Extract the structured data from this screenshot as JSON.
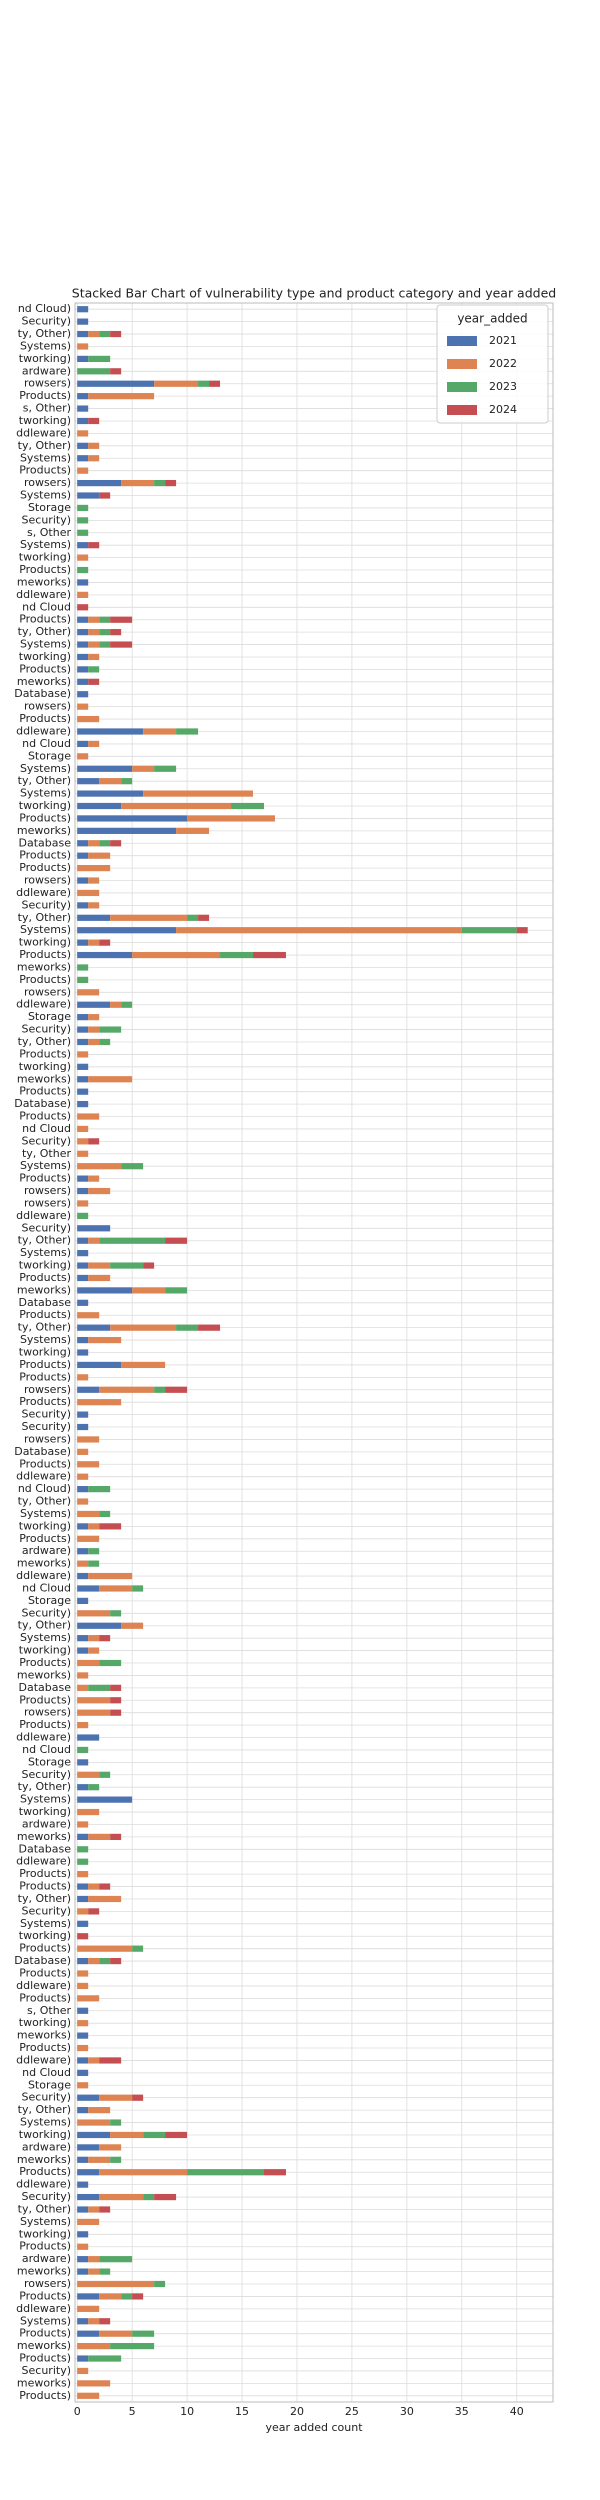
{
  "chart_data": {
    "type": "stacked_barh",
    "title": "Stacked Bar Chart of  vulnerability type and product category and year added",
    "x_label": "year added count",
    "legend_title": "year_added",
    "legend_position": "upper right",
    "grid": true,
    "xlim": [
      -0.2,
      43.3
    ],
    "xticks": [
      0,
      5,
      10,
      15,
      20,
      25,
      30,
      35,
      40
    ],
    "categories": [
      "nd Cloud)",
      "Security)",
      "ty, Other)",
      "Systems)",
      "tworking)",
      "ardware)",
      "rowsers)",
      "Products)",
      "s, Other)",
      "tworking)",
      "ddleware)",
      "ty, Other)",
      "Systems)",
      "Products)",
      "rowsers)",
      "Systems)",
      "Storage",
      "Security)",
      "s, Other",
      "Systems)",
      "tworking)",
      "Products)",
      "meworks)",
      "ddleware)",
      "nd Cloud",
      "Products)",
      "ty, Other)",
      "Systems)",
      "tworking)",
      "Products)",
      "meworks)",
      "Database)",
      "rowsers)",
      "Products)",
      "ddleware)",
      "nd Cloud",
      "Storage",
      "Systems)",
      "ty, Other)",
      "Systems)",
      "tworking)",
      "Products)",
      "meworks)",
      "Database",
      "Products)",
      "Products)",
      "rowsers)",
      "ddleware)",
      "Security)",
      "ty, Other)",
      "Systems)",
      "tworking)",
      "Products)",
      "meworks)",
      "Products)",
      "rowsers)",
      "ddleware)",
      "Storage",
      "Security)",
      "ty, Other)",
      "Products)",
      "tworking)",
      "meworks)",
      "Products)",
      "Database)",
      "Products)",
      "nd Cloud",
      "Security)",
      "ty, Other",
      "Systems)",
      "Products)",
      "rowsers)",
      "rowsers)",
      "ddleware)",
      "Security)",
      "ty, Other)",
      "Systems)",
      "tworking)",
      "Products)",
      "meworks)",
      "Database",
      "Products)",
      "ty, Other)",
      "Systems)",
      "tworking)",
      "Products)",
      "Products)",
      "rowsers)",
      "Products)",
      "Security)",
      "Security)",
      "rowsers)",
      "Database)",
      "Products)",
      "ddleware)",
      "nd Cloud)",
      "ty, Other)",
      "Systems)",
      "tworking)",
      "Products)",
      "ardware)",
      "meworks)",
      "ddleware)",
      "nd Cloud",
      "Storage",
      "Security)",
      "ty, Other)",
      "Systems)",
      "tworking)",
      "Products)",
      "meworks)",
      "Database",
      "Products)",
      "rowsers)",
      "Products)",
      "ddleware)",
      "nd Cloud",
      "Storage",
      "Security)",
      "ty, Other)",
      "Systems)",
      "tworking)",
      "ardware)",
      "meworks)",
      "Database",
      "ddleware)",
      "Products)",
      "Products)",
      "ty, Other)",
      "Security)",
      "Systems)",
      "tworking)",
      "Products)",
      "Database)",
      "Products)",
      "ddleware)",
      "Products)",
      "s, Other",
      "tworking)",
      "meworks)",
      "Products)",
      "ddleware)",
      "nd Cloud",
      "Storage",
      "Security)",
      "ty, Other)",
      "Systems)",
      "tworking)",
      "ardware)",
      "meworks)",
      "Products)",
      "ddleware)",
      "Security)",
      "ty, Other)",
      "Systems)",
      "tworking)",
      "Products)",
      "ardware)",
      "meworks)",
      "rowsers)",
      "Products)",
      "ddleware)",
      "Systems)",
      "Products)",
      "meworks)",
      "Products)",
      "Security)",
      "meworks)",
      "Products)"
    ],
    "series": [
      {
        "name": "2021",
        "color": "#4c72b0",
        "values": [
          1,
          1,
          1,
          0,
          1,
          0,
          7,
          1,
          1,
          1,
          0,
          1,
          1,
          0,
          4,
          2,
          0,
          0,
          0,
          1,
          0,
          0,
          1,
          0,
          0,
          1,
          1,
          1,
          1,
          1,
          1,
          1,
          0,
          0,
          6,
          1,
          0,
          5,
          2,
          6,
          4,
          10,
          9,
          1,
          1,
          0,
          1,
          0,
          1,
          3,
          9,
          1,
          5,
          0,
          0,
          0,
          3,
          1,
          1,
          1,
          0,
          1,
          1,
          1,
          1,
          0,
          0,
          0,
          0,
          0,
          1,
          1,
          0,
          0,
          3,
          1,
          1,
          1,
          1,
          5,
          1,
          0,
          3,
          1,
          1,
          4,
          0,
          2,
          0,
          1,
          1,
          0,
          0,
          0,
          0,
          1,
          0,
          0,
          1,
          0,
          1,
          0,
          1,
          2,
          1,
          0,
          4,
          1,
          1,
          0,
          0,
          0,
          0,
          0,
          0,
          2,
          0,
          1,
          0,
          1,
          5,
          0,
          0,
          1,
          0,
          0,
          0,
          1,
          1,
          0,
          1,
          0,
          0,
          1,
          0,
          0,
          0,
          1,
          0,
          1,
          0,
          1,
          1,
          0,
          2,
          1,
          0,
          3,
          2,
          1,
          2,
          1,
          2,
          1,
          0,
          1,
          0,
          1,
          1,
          0,
          2,
          0,
          1,
          2,
          0,
          1,
          0,
          0,
          0
        ]
      },
      {
        "name": "2022",
        "color": "#dd8452",
        "values": [
          0,
          0,
          1,
          1,
          0,
          0,
          4,
          6,
          0,
          0,
          1,
          1,
          1,
          1,
          3,
          0,
          0,
          0,
          0,
          0,
          1,
          0,
          0,
          1,
          0,
          1,
          1,
          1,
          1,
          0,
          0,
          0,
          1,
          2,
          3,
          1,
          1,
          2,
          2,
          10,
          10,
          8,
          3,
          1,
          2,
          3,
          1,
          2,
          1,
          7,
          26,
          1,
          8,
          0,
          0,
          2,
          1,
          1,
          1,
          1,
          1,
          0,
          4,
          0,
          0,
          2,
          1,
          1,
          1,
          4,
          1,
          2,
          1,
          0,
          0,
          1,
          0,
          2,
          2,
          3,
          0,
          2,
          6,
          3,
          0,
          4,
          1,
          5,
          4,
          0,
          0,
          2,
          1,
          2,
          1,
          0,
          1,
          2,
          1,
          2,
          0,
          1,
          4,
          3,
          0,
          3,
          2,
          1,
          1,
          2,
          1,
          1,
          3,
          3,
          1,
          0,
          0,
          0,
          2,
          0,
          0,
          2,
          1,
          2,
          0,
          0,
          1,
          1,
          3,
          1,
          0,
          0,
          5,
          1,
          1,
          1,
          2,
          0,
          1,
          0,
          1,
          1,
          0,
          1,
          3,
          2,
          3,
          3,
          2,
          2,
          8,
          0,
          4,
          1,
          2,
          0,
          1,
          1,
          1,
          7,
          2,
          2,
          1,
          3,
          3,
          0,
          1,
          3,
          2
        ]
      },
      {
        "name": "2023",
        "color": "#55a868",
        "values": [
          0,
          0,
          1,
          0,
          2,
          3,
          1,
          0,
          0,
          0,
          0,
          0,
          0,
          0,
          1,
          0,
          1,
          1,
          1,
          0,
          0,
          1,
          0,
          0,
          0,
          1,
          1,
          1,
          0,
          1,
          0,
          0,
          0,
          0,
          2,
          0,
          0,
          2,
          1,
          0,
          3,
          0,
          0,
          1,
          0,
          0,
          0,
          0,
          0,
          1,
          5,
          0,
          3,
          1,
          1,
          0,
          1,
          0,
          2,
          1,
          0,
          0,
          0,
          0,
          0,
          0,
          0,
          0,
          0,
          2,
          0,
          0,
          0,
          1,
          0,
          6,
          0,
          3,
          0,
          2,
          0,
          0,
          2,
          0,
          0,
          0,
          0,
          1,
          0,
          0,
          0,
          0,
          0,
          0,
          0,
          2,
          0,
          1,
          0,
          0,
          1,
          1,
          0,
          1,
          0,
          1,
          0,
          0,
          0,
          2,
          0,
          2,
          0,
          0,
          0,
          0,
          1,
          0,
          1,
          1,
          0,
          0,
          0,
          0,
          1,
          1,
          0,
          0,
          0,
          0,
          0,
          0,
          1,
          1,
          0,
          0,
          0,
          0,
          0,
          0,
          0,
          0,
          0,
          0,
          0,
          0,
          1,
          2,
          0,
          1,
          7,
          0,
          1,
          0,
          0,
          0,
          0,
          3,
          1,
          1,
          1,
          0,
          0,
          2,
          4,
          3,
          0,
          0,
          0
        ]
      },
      {
        "name": "2024",
        "color": "#c44e52",
        "values": [
          0,
          0,
          1,
          0,
          0,
          1,
          1,
          0,
          0,
          1,
          0,
          0,
          0,
          0,
          1,
          1,
          0,
          0,
          0,
          1,
          0,
          0,
          0,
          0,
          1,
          2,
          1,
          2,
          0,
          0,
          1,
          0,
          0,
          0,
          0,
          0,
          0,
          0,
          0,
          0,
          0,
          0,
          0,
          1,
          0,
          0,
          0,
          0,
          0,
          1,
          1,
          1,
          3,
          0,
          0,
          0,
          0,
          0,
          0,
          0,
          0,
          0,
          0,
          0,
          0,
          0,
          0,
          1,
          0,
          0,
          0,
          0,
          0,
          0,
          0,
          2,
          0,
          1,
          0,
          0,
          0,
          0,
          2,
          0,
          0,
          0,
          0,
          2,
          0,
          0,
          0,
          0,
          0,
          0,
          0,
          0,
          0,
          0,
          2,
          0,
          0,
          0,
          0,
          0,
          0,
          0,
          0,
          1,
          0,
          0,
          0,
          1,
          1,
          1,
          0,
          0,
          0,
          0,
          0,
          0,
          0,
          0,
          0,
          1,
          0,
          0,
          0,
          1,
          0,
          1,
          0,
          1,
          0,
          1,
          0,
          0,
          0,
          0,
          0,
          0,
          0,
          2,
          0,
          0,
          1,
          0,
          0,
          2,
          0,
          0,
          2,
          0,
          2,
          1,
          0,
          0,
          0,
          0,
          0,
          0,
          1,
          0,
          1,
          0,
          0,
          0,
          0,
          0,
          0
        ]
      }
    ]
  }
}
